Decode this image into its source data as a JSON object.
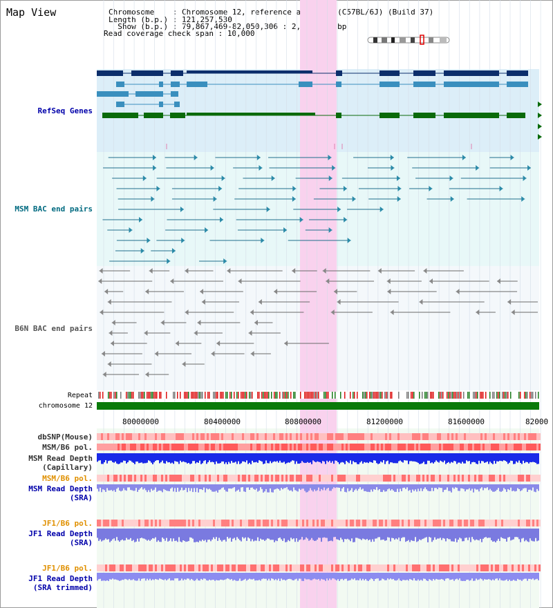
{
  "header": {
    "view_title": "Map View",
    "chromosome_label": "Chromosome    : ",
    "chromosome_value": "Chromosome 12, reference assembly (C57BL/6J) (Build 37)",
    "length_label": "Length (b.p.) : ",
    "length_value": "121,257,530",
    "show_label": "  Show (b.p.) : ",
    "show_value": "79,867,469-82,050,306 : 2,182,838 bp",
    "coverage_label": "Read coverage check span : ",
    "coverage_value": "10,000"
  },
  "tracks": {
    "refseq": "RefSeq Genes",
    "msm_bac": "MSM BAC end pairs",
    "b6n_bac": "B6N BAC end pairs",
    "repeat": "Repeat",
    "chromosome": "chromosome 12"
  },
  "axis": {
    "ticks": [
      "80000000",
      "80400000",
      "80800000",
      "81200000",
      "81600000",
      "82000"
    ]
  },
  "lower_tracks": {
    "dbsnp": "dbSNP(Mouse)",
    "msm_b6_pol": "MSM/B6 pol.",
    "msm_read_depth_cap_1": "MSM Read Depth",
    "msm_read_depth_cap_2": "(Capillary)",
    "msm_b6_pol_sra": "MSM/B6 pol.",
    "msm_read_depth_sra_1": "MSM Read Depth",
    "msm_read_depth_sra_2": "(SRA)",
    "jf1_b6_pol_1": "JF1/B6 pol.",
    "jf1_read_depth_1": "JF1 Read Depth",
    "jf1_read_depth_1b": "(SRA)",
    "jf1_b6_pol_2": "JF1/B6 pol.",
    "jf1_read_depth_2": "JF1 Read Depth",
    "jf1_read_depth_2b": "(SRA trimmed)"
  },
  "colors": {
    "highlight": "#f9d2ee",
    "refseq_bg": "#dceef8",
    "bac_bg": "#e8f8f8",
    "gene_dark": "#0c2e6b",
    "gene_mid": "#3a8fbe",
    "gene_green": "#0a6a0a",
    "label_blue": "#0000aa",
    "label_teal": "#006a80",
    "label_orange": "#e09000"
  }
}
